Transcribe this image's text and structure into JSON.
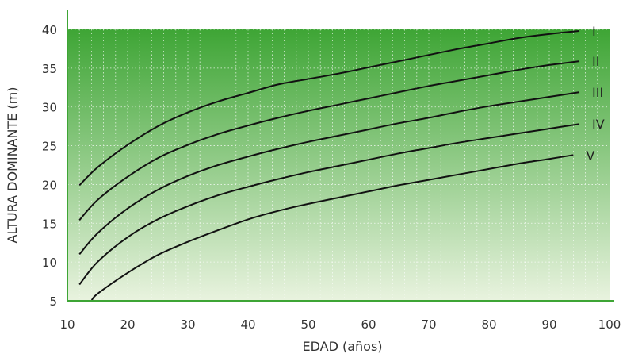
{
  "chart_data": {
    "type": "line",
    "title": "",
    "xlabel": "EDAD (años)",
    "ylabel": "ALTURA DOMINANTE (m)",
    "xlim": [
      10,
      100
    ],
    "ylim": [
      5,
      40
    ],
    "xticks": [
      10,
      20,
      30,
      40,
      50,
      60,
      70,
      80,
      90,
      100
    ],
    "yticks": [
      5,
      10,
      15,
      20,
      25,
      30,
      35,
      40
    ],
    "grid": true,
    "background": "vertical green gradient (dark top, light bottom)",
    "colors": {
      "bg_top": "#3ea535",
      "bg_bottom": "#e9f3df",
      "axis": "#3ea535",
      "line": "#111111"
    },
    "series": [
      {
        "name": "I",
        "x": [
          12,
          15,
          20,
          25,
          30,
          35,
          40,
          45,
          50,
          55,
          60,
          65,
          70,
          75,
          80,
          85,
          90,
          95
        ],
        "y": [
          19.9,
          22.2,
          25.1,
          27.5,
          29.3,
          30.7,
          31.8,
          32.9,
          33.6,
          34.3,
          35.1,
          35.9,
          36.7,
          37.5,
          38.2,
          38.9,
          39.4,
          39.8
        ]
      },
      {
        "name": "II",
        "x": [
          12,
          15,
          20,
          25,
          30,
          35,
          40,
          45,
          50,
          55,
          60,
          65,
          70,
          75,
          80,
          85,
          90,
          95
        ],
        "y": [
          15.4,
          18.0,
          21.0,
          23.4,
          25.1,
          26.5,
          27.6,
          28.6,
          29.5,
          30.3,
          31.1,
          31.9,
          32.7,
          33.4,
          34.1,
          34.8,
          35.4,
          35.9
        ]
      },
      {
        "name": "III",
        "x": [
          12,
          15,
          20,
          25,
          30,
          35,
          40,
          45,
          50,
          55,
          60,
          65,
          70,
          75,
          80,
          85,
          90,
          95
        ],
        "y": [
          11.0,
          13.7,
          16.9,
          19.3,
          21.1,
          22.5,
          23.6,
          24.6,
          25.5,
          26.3,
          27.1,
          27.9,
          28.6,
          29.4,
          30.1,
          30.7,
          31.3,
          31.9
        ]
      },
      {
        "name": "IV",
        "x": [
          12,
          15,
          20,
          25,
          30,
          35,
          40,
          45,
          50,
          55,
          60,
          65,
          70,
          75,
          80,
          85,
          90,
          95
        ],
        "y": [
          7.1,
          10.0,
          13.2,
          15.5,
          17.2,
          18.6,
          19.7,
          20.7,
          21.6,
          22.4,
          23.2,
          24.0,
          24.7,
          25.4,
          26.0,
          26.6,
          27.2,
          27.8
        ]
      },
      {
        "name": "V",
        "x": [
          14,
          15,
          20,
          25,
          30,
          35,
          40,
          45,
          50,
          55,
          60,
          65,
          70,
          75,
          80,
          85,
          90,
          94
        ],
        "y": [
          5.0,
          5.9,
          8.6,
          10.9,
          12.6,
          14.1,
          15.5,
          16.6,
          17.5,
          18.3,
          19.1,
          19.9,
          20.6,
          21.3,
          22.0,
          22.7,
          23.3,
          23.8
        ]
      }
    ]
  }
}
